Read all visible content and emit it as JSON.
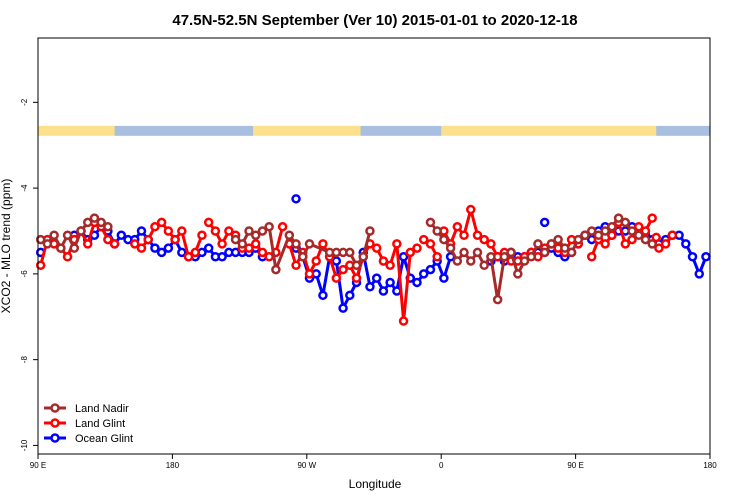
{
  "chart_data": {
    "type": "line",
    "title": "47.5N-52.5N September (Ver 10)   2015-01-01 to 2020-12-18",
    "xlabel": "Longitude",
    "ylabel": "XCO2 - MLO trend (ppm)",
    "xlim": [
      0,
      500
    ],
    "ylim": [
      -10.2,
      -0.5
    ],
    "xticks": [
      {
        "value": 0,
        "label": "90 E"
      },
      {
        "value": 100,
        "label": "180"
      },
      {
        "value": 200,
        "label": "90 W"
      },
      {
        "value": 300,
        "label": "0"
      },
      {
        "value": 400,
        "label": "90 E"
      },
      {
        "value": 500,
        "label": "180"
      }
    ],
    "yticks": [
      {
        "value": -2,
        "label": "-2"
      },
      {
        "value": -4,
        "label": "-4"
      },
      {
        "value": -6,
        "label": "-6"
      },
      {
        "value": -8,
        "label": "-8"
      },
      {
        "value": -10,
        "label": "-10"
      }
    ],
    "land_ocean_band": {
      "y_top": -2.55,
      "y_bottom": -2.78,
      "land_color": "#fde08b",
      "ocean_color": "#a8bfe0",
      "ocean_segments": [
        [
          57,
          160
        ],
        [
          240,
          300
        ],
        [
          460,
          500
        ]
      ]
    },
    "legend": {
      "position": "bottom-left"
    },
    "series": [
      {
        "name": "Land Nadir",
        "color": "#a52a2a",
        "x": [
          2,
          7,
          12,
          17,
          22,
          27,
          32,
          37,
          42,
          47,
          52,
          147,
          152,
          157,
          162,
          167,
          172,
          177,
          187,
          192,
          197,
          202,
          217,
          222,
          227,
          232,
          237,
          242,
          247,
          292,
          297,
          302,
          307,
          312,
          317,
          322,
          327,
          332,
          337,
          342,
          347,
          352,
          357,
          362,
          367,
          372,
          377,
          382,
          387,
          392,
          397,
          402,
          407,
          412,
          417,
          422,
          427,
          432,
          437,
          442,
          447,
          452,
          457
        ],
        "y": [
          -5.2,
          -5.3,
          -5.1,
          -5.4,
          -5.1,
          -5.4,
          -5.0,
          -4.8,
          -4.7,
          -4.8,
          -4.9,
          -5.2,
          -5.3,
          -5.0,
          -5.1,
          -5.0,
          -4.9,
          -5.9,
          -5.1,
          -5.3,
          -5.6,
          -5.3,
          -5.5,
          -5.5,
          -5.5,
          -5.5,
          -5.8,
          -5.6,
          -5.0,
          -4.8,
          -5.0,
          -5.2,
          -5.4,
          -5.7,
          -5.5,
          -5.7,
          -5.5,
          -5.8,
          -5.6,
          -6.6,
          -5.6,
          -5.5,
          -6.0,
          -5.7,
          -5.6,
          -5.3,
          -5.5,
          -5.3,
          -5.2,
          -5.4,
          -5.5,
          -5.2,
          -5.1,
          -5.0,
          -5.1,
          -5.0,
          -4.9,
          -4.7,
          -4.8,
          -5.0,
          -5.1,
          -5.2,
          -5.3
        ],
        "breaks": [
          11,
          29
        ]
      },
      {
        "name": "Land Glint",
        "color": "#ff0000",
        "x": [
          2,
          7,
          12,
          17,
          22,
          27,
          32,
          37,
          42,
          47,
          52,
          57,
          72,
          77,
          82,
          87,
          92,
          97,
          102,
          107,
          112,
          117,
          122,
          127,
          132,
          137,
          142,
          147,
          152,
          157,
          162,
          167,
          172,
          177,
          182,
          187,
          192,
          197,
          202,
          207,
          212,
          217,
          222,
          227,
          232,
          237,
          242,
          247,
          252,
          257,
          262,
          267,
          272,
          277,
          282,
          287,
          292,
          297,
          302,
          307,
          312,
          317,
          322,
          327,
          332,
          337,
          342,
          347,
          352,
          357,
          362,
          367,
          372,
          377,
          382,
          387,
          392,
          397,
          402,
          407,
          412,
          417,
          422,
          427,
          432,
          437,
          442,
          447,
          452,
          457,
          462,
          467,
          472
        ],
        "y": [
          -5.8,
          -5.2,
          -5.3,
          -5.4,
          -5.6,
          -5.2,
          -5.0,
          -5.3,
          -4.8,
          -4.9,
          -5.2,
          -5.3,
          -5.3,
          -5.4,
          -5.2,
          -4.9,
          -4.8,
          -5.0,
          -5.2,
          -5.0,
          -5.6,
          -5.5,
          -5.1,
          -4.8,
          -5.0,
          -5.3,
          -5.0,
          -5.1,
          -5.4,
          -5.4,
          -5.3,
          -5.5,
          -5.6,
          -5.5,
          -4.9,
          -5.3,
          -5.8,
          -5.5,
          -6.0,
          -5.7,
          -5.3,
          -5.6,
          -6.1,
          -5.9,
          -5.8,
          -6.1,
          -5.6,
          -5.3,
          -5.4,
          -5.7,
          -5.8,
          -5.3,
          -7.1,
          -5.5,
          -5.4,
          -5.2,
          -5.3,
          -5.6,
          -5.0,
          -5.3,
          -4.9,
          -5.1,
          -4.5,
          -5.1,
          -5.2,
          -5.3,
          -5.6,
          -5.5,
          -5.7,
          -5.7,
          -5.6,
          -5.5,
          -5.6,
          -5.4,
          -5.3,
          -5.4,
          -5.5,
          -5.2,
          -5.3,
          -5.1,
          -5.6,
          -5.2,
          -5.3,
          -5.1,
          -4.8,
          -5.3,
          -5.2,
          -4.9,
          -5.0,
          -4.7,
          -5.4,
          -5.3,
          -5.1
        ],
        "breaks": [
          12,
          23,
          35,
          50,
          55,
          58,
          73,
          80,
          87,
          90,
          93
        ]
      },
      {
        "name": "Ocean Glint",
        "color": "#0000ff",
        "x": [
          2,
          27,
          32,
          37,
          42,
          47,
          52,
          57,
          62,
          67,
          72,
          77,
          82,
          87,
          92,
          97,
          102,
          107,
          112,
          117,
          122,
          127,
          132,
          137,
          142,
          147,
          152,
          157,
          162,
          167,
          192,
          197,
          202,
          207,
          212,
          217,
          222,
          227,
          232,
          237,
          242,
          247,
          252,
          257,
          262,
          267,
          272,
          277,
          282,
          287,
          292,
          297,
          302,
          307,
          337,
          342,
          347,
          352,
          357,
          362,
          367,
          372,
          377,
          382,
          387,
          392,
          397,
          402,
          407,
          412,
          417,
          422,
          427,
          432,
          437,
          442,
          447,
          452,
          457,
          462,
          467,
          472,
          477,
          482,
          487,
          492,
          497
        ],
        "y": [
          -5.5,
          -5.1,
          -5.0,
          -5.2,
          -5.1,
          -4.9,
          -5.0,
          -5.3,
          -5.1,
          -5.2,
          -5.2,
          -5.0,
          -5.2,
          -5.4,
          -5.5,
          -5.4,
          -5.2,
          -5.5,
          -5.6,
          -5.6,
          -5.5,
          -5.4,
          -5.6,
          -5.6,
          -5.5,
          -5.5,
          -5.5,
          -5.5,
          -5.4,
          -5.6,
          -5.4,
          -5.6,
          -6.1,
          -6.0,
          -6.5,
          -5.6,
          -5.7,
          -6.8,
          -6.5,
          -6.2,
          -5.5,
          -6.3,
          -6.1,
          -6.4,
          -6.2,
          -6.4,
          -5.6,
          -6.1,
          -6.2,
          -6.0,
          -5.9,
          -5.7,
          -6.1,
          -5.6,
          -5.7,
          -5.6,
          -5.7,
          -5.5,
          -5.6,
          -5.6,
          -5.5,
          -5.5,
          -5.5,
          -5.4,
          -5.5,
          -5.6,
          -5.5,
          -5.3,
          -5.1,
          -5.2,
          -5.0,
          -4.9,
          -5.1,
          -5.0,
          -5.0,
          -4.9,
          -5.0,
          -5.1,
          -5.2,
          -5.3,
          -5.2,
          -5.1,
          -5.1,
          -5.3,
          -5.6,
          -6.0,
          -5.6
        ],
        "breaks": [
          1,
          14,
          24,
          30,
          54,
          56,
          63,
          67,
          71,
          73
        ]
      }
    ],
    "extra_points": [
      {
        "series": "Ocean Glint",
        "x": 192,
        "y": -4.25
      },
      {
        "series": "Ocean Glint",
        "x": 377,
        "y": -4.8
      },
      {
        "series": "Land Glint",
        "x": 460,
        "y": -5.15
      }
    ]
  }
}
